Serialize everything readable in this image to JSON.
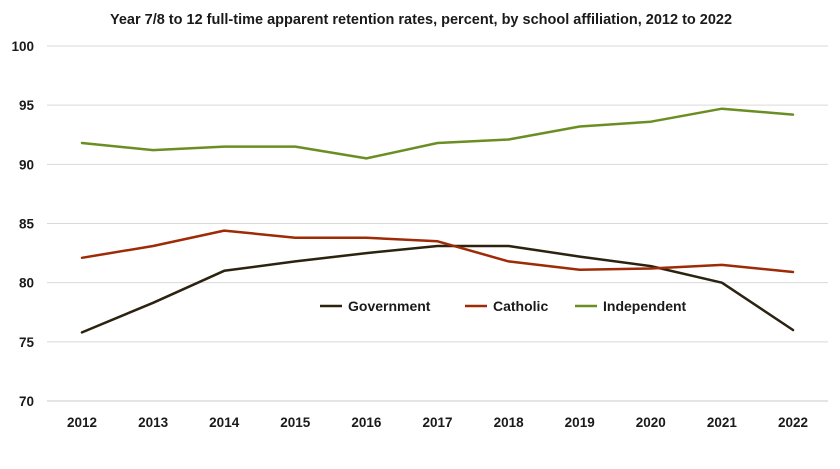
{
  "chart_data": {
    "type": "line",
    "title": "Year 7/8 to 12 full-time apparent retention rates, percent, by school affiliation, 2012 to 2022",
    "xlabel": "",
    "ylabel": "",
    "categories": [
      "2012",
      "2013",
      "2014",
      "2015",
      "2016",
      "2017",
      "2018",
      "2019",
      "2020",
      "2021",
      "2022"
    ],
    "ylim": [
      70,
      100
    ],
    "yticks": [
      70,
      75,
      80,
      85,
      90,
      95,
      100
    ],
    "grid": true,
    "legend": "inside-center",
    "series": [
      {
        "name": "Government",
        "color": "#2b2310",
        "values": [
          75.8,
          78.3,
          81.0,
          81.8,
          82.5,
          83.1,
          83.1,
          82.2,
          81.4,
          80.0,
          76.0
        ]
      },
      {
        "name": "Catholic",
        "color": "#9e2a06",
        "values": [
          82.1,
          83.1,
          84.4,
          83.8,
          83.8,
          83.5,
          81.8,
          81.1,
          81.2,
          81.5,
          80.9
        ]
      },
      {
        "name": "Independent",
        "color": "#6b8e23",
        "values": [
          91.8,
          91.2,
          91.5,
          91.5,
          90.5,
          91.8,
          92.1,
          93.2,
          93.6,
          94.7,
          94.2
        ]
      }
    ]
  }
}
